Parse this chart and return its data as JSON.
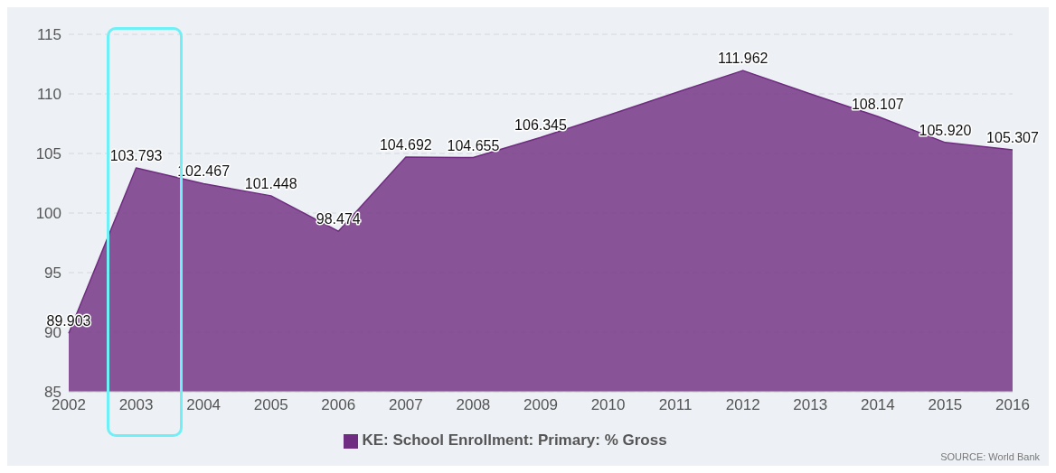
{
  "chart_data": {
    "type": "area",
    "categories": [
      "2002",
      "2003",
      "2004",
      "2005",
      "2006",
      "2007",
      "2008",
      "2009",
      "2010",
      "2011",
      "2012",
      "2013",
      "2014",
      "2015",
      "2016"
    ],
    "series": [
      {
        "name": "KE: School Enrollment: Primary: % Gross",
        "color": "#6f2c80",
        "values": [
          89.903,
          103.793,
          102.467,
          101.448,
          98.474,
          104.692,
          104.655,
          106.345,
          108.2,
          110.1,
          111.962,
          110.0,
          108.107,
          105.92,
          105.307
        ],
        "value_labels": [
          "89.903",
          "103.793",
          "102.467",
          "101.448",
          "98.474",
          "104.692",
          "104.655",
          "106.345",
          null,
          null,
          "111.962",
          null,
          "108.107",
          "105.920",
          "105.307"
        ]
      }
    ],
    "ylim": [
      85,
      115
    ],
    "yticks": [
      85,
      90,
      95,
      100,
      105,
      110,
      115
    ],
    "grid": "y",
    "legend": "bottom",
    "annotations": [
      "SOURCE: World Bank"
    ]
  }
}
